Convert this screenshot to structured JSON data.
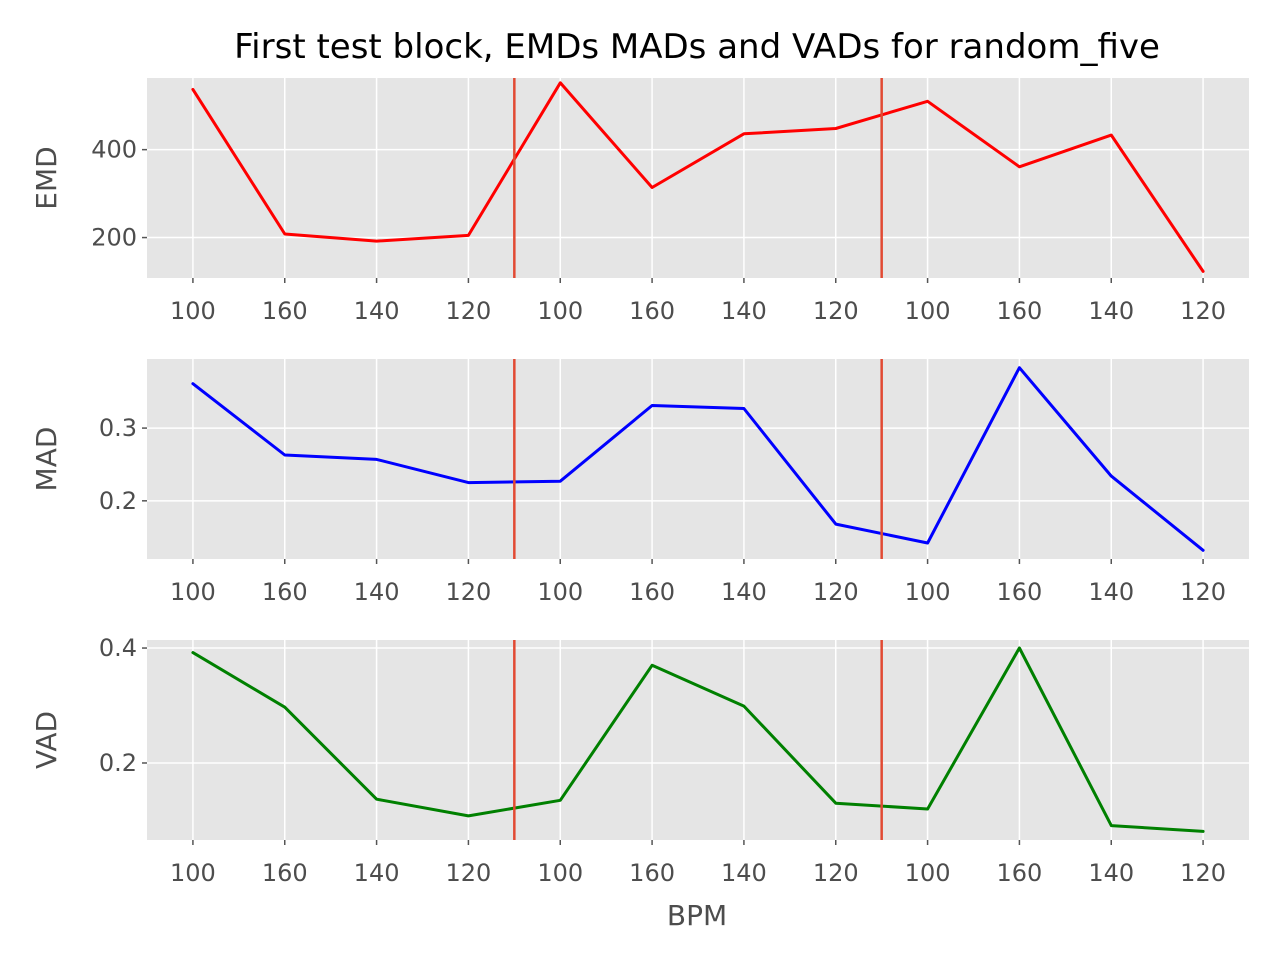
{
  "chart_data": {
    "type": "line",
    "title": "First test block, EMDs MADs and VADs for random_five",
    "xlabel": "BPM",
    "x_tick_labels": [
      "100",
      "160",
      "140",
      "120",
      "100",
      "160",
      "140",
      "120",
      "100",
      "160",
      "140",
      "120"
    ],
    "vertical_markers_at_position": [
      3.5,
      7.5
    ],
    "vertical_marker_color": "#e24a33",
    "panels": [
      {
        "ylabel": "EMD",
        "color": "#ff0000",
        "values": [
          537,
          208,
          192,
          205,
          552,
          314,
          436,
          448,
          510,
          361,
          433,
          123
        ],
        "ylim": [
          108,
          563
        ],
        "y_ticks": [
          200,
          400
        ],
        "y_tick_labels": [
          "200",
          "400"
        ]
      },
      {
        "ylabel": "MAD",
        "color": "#0000ff",
        "values": [
          0.361,
          0.263,
          0.257,
          0.225,
          0.227,
          0.331,
          0.327,
          0.168,
          0.142,
          0.383,
          0.234,
          0.132
        ],
        "ylim": [
          0.12,
          0.395
        ],
        "y_ticks": [
          0.2,
          0.3
        ],
        "y_tick_labels": [
          "0.2",
          "0.3"
        ]
      },
      {
        "ylabel": "VAD",
        "color": "#008000",
        "values": [
          0.392,
          0.297,
          0.137,
          0.108,
          0.135,
          0.37,
          0.299,
          0.13,
          0.12,
          0.4,
          0.091,
          0.081
        ],
        "ylim": [
          0.066,
          0.414
        ],
        "y_ticks": [
          0.2,
          0.4
        ],
        "y_tick_labels": [
          "0.2",
          "0.4"
        ]
      }
    ]
  }
}
